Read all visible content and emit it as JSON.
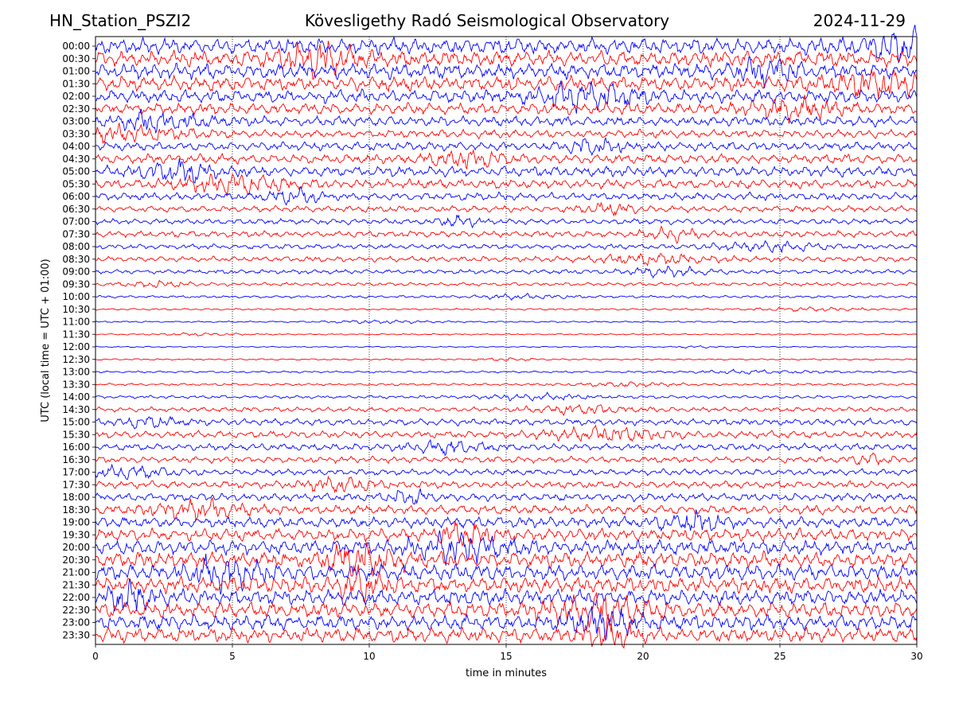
{
  "header": {
    "station": "HN_Station_PSZI2",
    "observatory": "Kövesligethy Radó Seismological Observatory",
    "date": "2024-11-29"
  },
  "chart_data": {
    "type": "line",
    "xlabel": "time in minutes",
    "ylabel": "UTC (local time = UTC + 01:00)",
    "xlim": [
      0,
      30
    ],
    "xticks": [
      0,
      5,
      10,
      15,
      20,
      25,
      30
    ],
    "vertical_gridlines": [
      5,
      10,
      15,
      20,
      25
    ],
    "rows": [
      "00:00",
      "00:30",
      "01:00",
      "01:30",
      "02:00",
      "02:30",
      "03:00",
      "03:30",
      "04:00",
      "04:30",
      "05:00",
      "05:30",
      "06:00",
      "06:30",
      "07:00",
      "07:30",
      "08:00",
      "08:30",
      "09:00",
      "09:30",
      "10:00",
      "10:30",
      "11:00",
      "11:30",
      "12:00",
      "12:30",
      "13:00",
      "13:30",
      "14:00",
      "14:30",
      "15:00",
      "15:30",
      "16:00",
      "16:30",
      "17:00",
      "17:30",
      "18:00",
      "18:30",
      "19:00",
      "19:30",
      "20:00",
      "20:30",
      "21:00",
      "21:30",
      "22:00",
      "22:30",
      "23:00",
      "23:30"
    ],
    "colors": [
      "#0000ff",
      "#ff0000"
    ],
    "relative_amplitude": [
      1.0,
      0.98,
      0.95,
      0.9,
      0.8,
      0.72,
      0.62,
      0.52,
      0.55,
      0.6,
      0.65,
      0.58,
      0.48,
      0.4,
      0.36,
      0.4,
      0.32,
      0.34,
      0.28,
      0.22,
      0.16,
      0.12,
      0.1,
      0.09,
      0.08,
      0.1,
      0.13,
      0.15,
      0.2,
      0.3,
      0.42,
      0.45,
      0.42,
      0.4,
      0.4,
      0.45,
      0.5,
      0.58,
      0.68,
      0.78,
      0.9,
      0.98,
      1.0,
      1.0,
      0.98,
      0.96,
      0.94,
      0.92
    ]
  }
}
